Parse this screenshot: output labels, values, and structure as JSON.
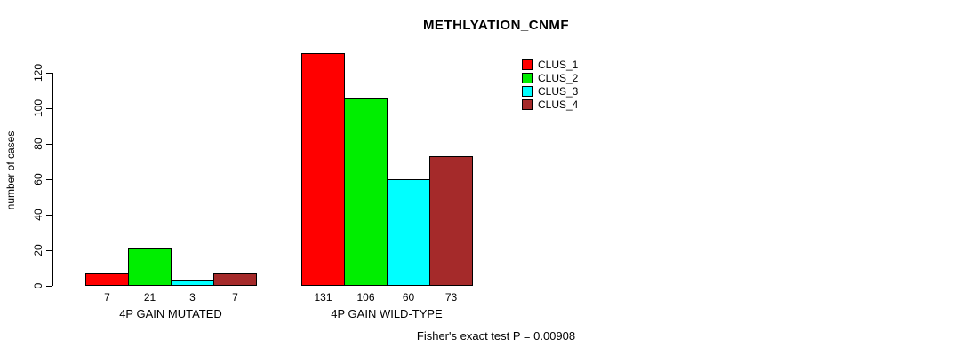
{
  "chart_data": {
    "type": "bar",
    "title": "METHLYATION_CNMF",
    "ylabel": "number of cases",
    "xlabel": "",
    "ylim": [
      0,
      131
    ],
    "yticks": [
      0,
      20,
      40,
      60,
      80,
      100,
      120
    ],
    "categories": [
      "4P GAIN MUTATED",
      "4P GAIN WILD-TYPE"
    ],
    "series": [
      {
        "name": "CLUS_1",
        "color": "#FF0000",
        "values": [
          7,
          131
        ]
      },
      {
        "name": "CLUS_2",
        "color": "#00EE00",
        "values": [
          21,
          106
        ]
      },
      {
        "name": "CLUS_3",
        "color": "#00FFFF",
        "values": [
          3,
          60
        ]
      },
      {
        "name": "CLUS_4",
        "color": "#A52A2A",
        "values": [
          7,
          73
        ]
      }
    ],
    "bar_labels": [
      [
        "7",
        "21",
        "3",
        "7"
      ],
      [
        "131",
        "106",
        "60",
        "73"
      ]
    ],
    "annotation": "Fisher's exact test P = 0.00908",
    "legend_position": "top-right",
    "grid": false,
    "background": "#FFFFFF",
    "bar_border_color": "#000000"
  }
}
